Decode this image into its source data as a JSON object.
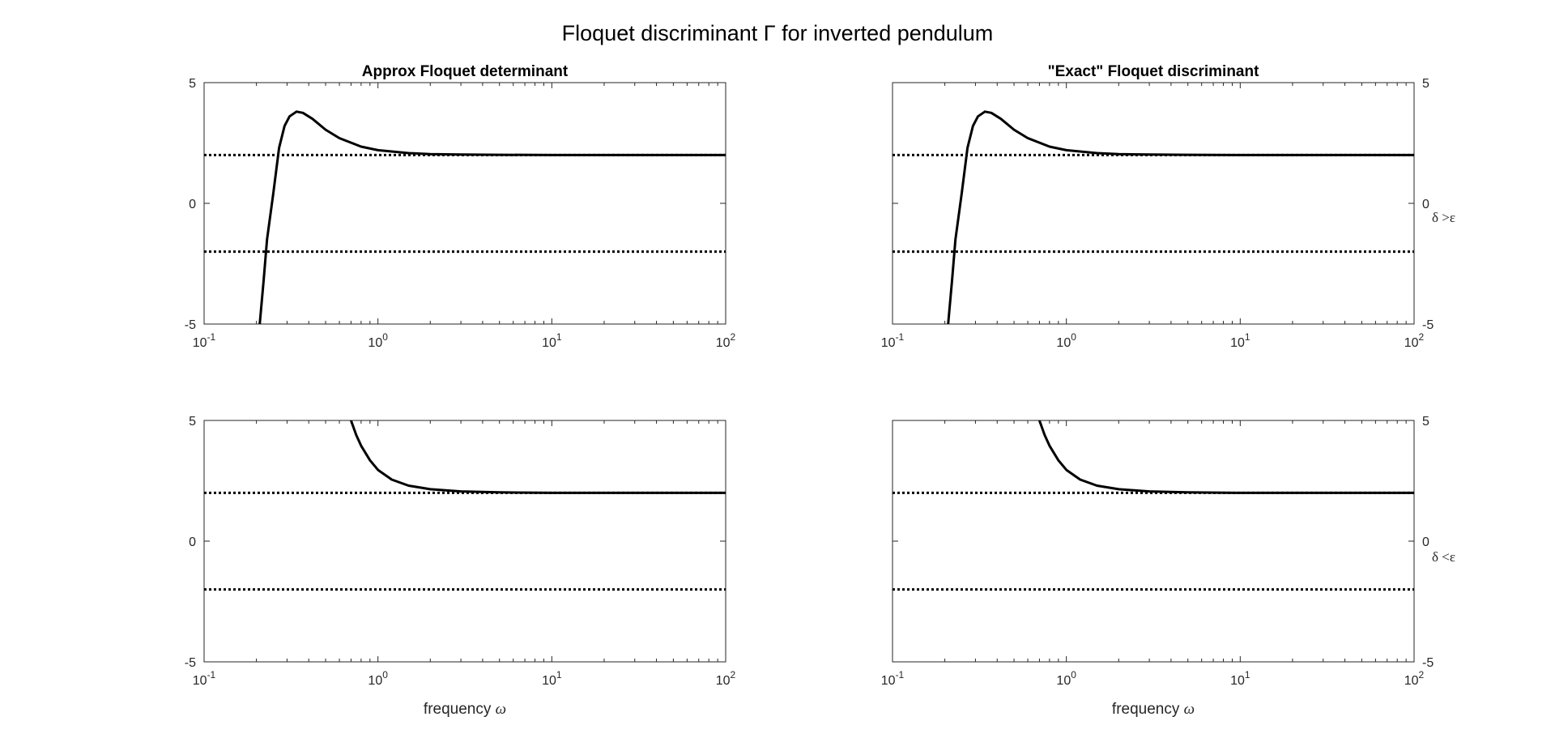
{
  "figure": {
    "title": "Floquet discriminant Γ for inverted pendulum",
    "row_labels": [
      "δ >ε",
      "δ <ε"
    ]
  },
  "chart_data": [
    {
      "type": "line",
      "title": "Approx Floquet determinant",
      "xlabel": "",
      "ylabel": "",
      "xscale": "log",
      "xlim": [
        0.1,
        100
      ],
      "ylim": [
        -5,
        5
      ],
      "xticks": [
        "10-1",
        "100",
        "101",
        "102"
      ],
      "yticks": [
        "-5",
        "0",
        "5"
      ],
      "yaxis_side": "left",
      "grid": false,
      "series": [
        {
          "style": "solid",
          "x": [
            0.209,
            0.22,
            0.23,
            0.25,
            0.27,
            0.29,
            0.31,
            0.34,
            0.37,
            0.42,
            0.5,
            0.6,
            0.8,
            1.0,
            1.5,
            2,
            3,
            5,
            10,
            100
          ],
          "y": [
            -5,
            -3.2,
            -1.5,
            0.4,
            2.3,
            3.2,
            3.6,
            3.8,
            3.75,
            3.5,
            3.05,
            2.7,
            2.35,
            2.2,
            2.08,
            2.04,
            2.02,
            2.01,
            2.0,
            2.0
          ]
        },
        {
          "style": "dotted",
          "x": [
            0.1,
            100
          ],
          "y": [
            2,
            2
          ]
        },
        {
          "style": "dotted",
          "x": [
            0.1,
            100
          ],
          "y": [
            -2,
            -2
          ]
        }
      ]
    },
    {
      "type": "line",
      "title": "\"Exact\" Floquet discriminant",
      "xlabel": "",
      "ylabel": "",
      "xscale": "log",
      "xlim": [
        0.1,
        100
      ],
      "ylim": [
        -5,
        5
      ],
      "xticks": [
        "10-1",
        "100",
        "101",
        "102"
      ],
      "yticks": [
        "-5",
        "0",
        "5"
      ],
      "yaxis_side": "right",
      "grid": false,
      "series": [
        {
          "style": "solid",
          "x": [
            0.209,
            0.22,
            0.23,
            0.25,
            0.27,
            0.29,
            0.31,
            0.34,
            0.37,
            0.42,
            0.5,
            0.6,
            0.8,
            1.0,
            1.5,
            2,
            3,
            5,
            10,
            100
          ],
          "y": [
            -5,
            -3.2,
            -1.5,
            0.4,
            2.3,
            3.2,
            3.6,
            3.8,
            3.75,
            3.5,
            3.05,
            2.7,
            2.35,
            2.2,
            2.08,
            2.04,
            2.02,
            2.01,
            2.0,
            2.0
          ]
        },
        {
          "style": "dotted",
          "x": [
            0.1,
            100
          ],
          "y": [
            2,
            2
          ]
        },
        {
          "style": "dotted",
          "x": [
            0.1,
            100
          ],
          "y": [
            -2,
            -2
          ]
        }
      ]
    },
    {
      "type": "line",
      "title": "",
      "xlabel": "frequency ω",
      "ylabel": "",
      "xscale": "log",
      "xlim": [
        0.1,
        100
      ],
      "ylim": [
        -5,
        5
      ],
      "xticks": [
        "10-1",
        "100",
        "101",
        "102"
      ],
      "yticks": [
        "-5",
        "0",
        "5"
      ],
      "yaxis_side": "left",
      "grid": false,
      "series": [
        {
          "style": "solid",
          "x": [
            0.7,
            0.75,
            0.8,
            0.9,
            1.0,
            1.2,
            1.5,
            2,
            3,
            5,
            10,
            100
          ],
          "y": [
            5,
            4.4,
            3.95,
            3.35,
            2.95,
            2.55,
            2.3,
            2.15,
            2.06,
            2.02,
            2.0,
            2.0
          ]
        },
        {
          "style": "dotted",
          "x": [
            0.1,
            100
          ],
          "y": [
            2,
            2
          ]
        },
        {
          "style": "dotted",
          "x": [
            0.1,
            100
          ],
          "y": [
            -2,
            -2
          ]
        }
      ]
    },
    {
      "type": "line",
      "title": "",
      "xlabel": "frequency ω",
      "ylabel": "",
      "xscale": "log",
      "xlim": [
        0.1,
        100
      ],
      "ylim": [
        -5,
        5
      ],
      "xticks": [
        "10-1",
        "100",
        "101",
        "102"
      ],
      "yticks": [
        "-5",
        "0",
        "5"
      ],
      "yaxis_side": "right",
      "grid": false,
      "series": [
        {
          "style": "solid",
          "x": [
            0.7,
            0.75,
            0.8,
            0.9,
            1.0,
            1.2,
            1.5,
            2,
            3,
            5,
            10,
            100
          ],
          "y": [
            5,
            4.4,
            3.95,
            3.35,
            2.95,
            2.55,
            2.3,
            2.15,
            2.06,
            2.02,
            2.0,
            2.0
          ]
        },
        {
          "style": "dotted",
          "x": [
            0.1,
            100
          ],
          "y": [
            2,
            2
          ]
        },
        {
          "style": "dotted",
          "x": [
            0.1,
            100
          ],
          "y": [
            -2,
            -2
          ]
        }
      ]
    }
  ]
}
